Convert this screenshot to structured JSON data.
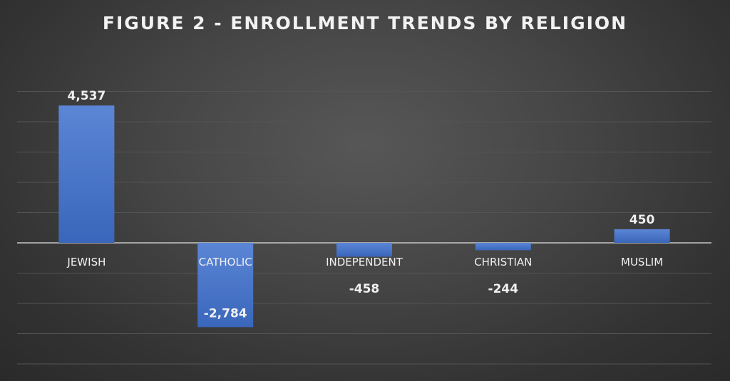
{
  "chart_data": {
    "type": "bar",
    "title": "FIGURE 2 - ENROLLMENT TRENDS BY RELIGION",
    "categories": [
      "JEWISH",
      "CATHOLIC",
      "INDEPENDENT",
      "CHRISTIAN",
      "MUSLIM"
    ],
    "values": [
      4537,
      -2784,
      -458,
      -244,
      450
    ],
    "value_labels": [
      "4,537",
      "-2,784",
      "-458",
      "-244",
      "450"
    ],
    "ylim": [
      -4000,
      5000
    ],
    "grid": true,
    "legend": "none",
    "xlabel": "",
    "ylabel": "",
    "colors": {
      "bar": "#4472c4",
      "background": "#404040",
      "text": "#f0f0f0",
      "gridline": "#545454"
    }
  }
}
